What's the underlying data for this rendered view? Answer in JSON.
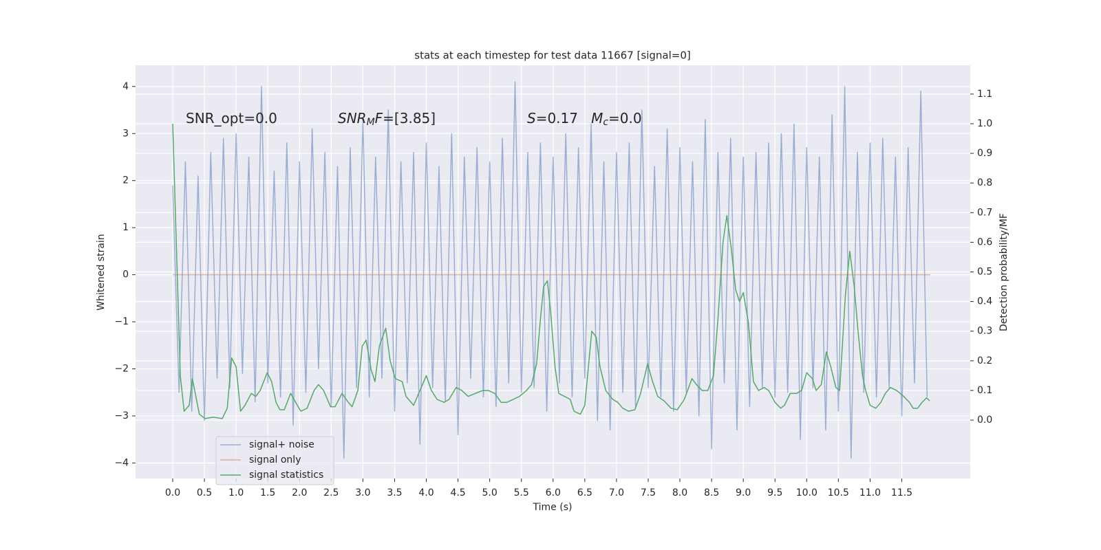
{
  "chart_data": {
    "type": "line",
    "title": "stats at each timestep for test data 11667 [signal=0]",
    "x_label": "Time (s)",
    "y_label": "Whitened strain",
    "y2_label": "Detection probability/MF",
    "annotations": [
      [
        {
          "t": "SNR_opt=0.0"
        }
      ],
      [
        {
          "t": "SNR",
          "italic": true
        },
        {
          "t": "M",
          "italic": true,
          "sub": true
        },
        {
          "t": "F",
          "italic": true
        },
        {
          "t": "=[3.85]"
        }
      ],
      [
        {
          "t": "S",
          "italic": true
        },
        {
          "t": "=0.17   "
        },
        {
          "t": "M",
          "italic": true
        },
        {
          "t": "c",
          "italic": true,
          "sub": true
        },
        {
          "t": "=0.0"
        }
      ]
    ],
    "xlim": [
      -0.586,
      12.58
    ],
    "ylim": [
      -4.33,
      4.45
    ],
    "y2lim": [
      -0.197,
      1.197
    ],
    "xticks": [
      {
        "value": 0,
        "label": "0.0"
      },
      0.5,
      {
        "value": 1,
        "label": "1.0"
      },
      1.5,
      {
        "value": 2,
        "label": "2.0"
      },
      2.5,
      {
        "value": 3,
        "label": "3.0"
      },
      3.5,
      {
        "value": 4,
        "label": "4.0"
      },
      4.5,
      {
        "value": 5,
        "label": "5.0"
      },
      5.5,
      {
        "value": 6,
        "label": "6.0"
      },
      6.5,
      {
        "value": 7,
        "label": "7.0"
      },
      7.5,
      {
        "value": 8,
        "label": "8.0"
      },
      8.5,
      {
        "value": 9,
        "label": "9.0"
      },
      9.5,
      {
        "value": 10,
        "label": "10.0"
      },
      10.5,
      {
        "value": 11,
        "label": "11.0"
      },
      11.5
    ],
    "yticks": [
      {
        "value": -4,
        "label": "−4"
      },
      {
        "value": -3,
        "label": "−3"
      },
      {
        "value": -2,
        "label": "−2"
      },
      {
        "value": -1,
        "label": "−1"
      },
      0,
      1,
      2,
      3,
      4
    ],
    "y2ticks": [
      {
        "value": 0,
        "label": "0.0"
      },
      0.1,
      0.2,
      0.3,
      0.4,
      0.5,
      0.6,
      0.7,
      0.8,
      0.9,
      {
        "value": 1,
        "label": "1.0"
      },
      1.1
    ],
    "grid": true,
    "legend": "lower left",
    "series": [
      {
        "name": "signal+ noise",
        "color": "#4c72b0",
        "opacity": 0.5,
        "x": [
          0,
          0.1,
          0.2,
          0.3,
          0.4,
          0.5,
          0.6,
          0.7,
          0.8,
          0.9,
          1,
          1.1,
          1.2,
          1.3,
          1.4,
          1.5,
          1.6,
          1.7,
          1.8,
          1.9,
          2,
          2.1,
          2.2,
          2.3,
          2.4,
          2.5,
          2.6,
          2.7,
          2.8,
          2.9,
          3,
          3.1,
          3.2,
          3.3,
          3.4,
          3.5,
          3.6,
          3.7,
          3.8,
          3.9,
          4,
          4.1,
          4.2,
          4.3,
          4.4,
          4.5,
          4.6,
          4.7,
          4.8,
          4.9,
          5,
          5.1,
          5.2,
          5.3,
          5.4,
          5.5,
          5.6,
          5.7,
          5.8,
          5.9,
          6,
          6.1,
          6.2,
          6.3,
          6.4,
          6.5,
          6.6,
          6.7,
          6.8,
          6.9,
          7,
          7.1,
          7.2,
          7.3,
          7.4,
          7.5,
          7.6,
          7.7,
          7.8,
          7.9,
          8,
          8.1,
          8.2,
          8.3,
          8.4,
          8.5,
          8.6,
          8.7,
          8.8,
          8.9,
          9,
          9.1,
          9.2,
          9.3,
          9.4,
          9.5,
          9.6,
          9.7,
          9.8,
          9.9,
          10,
          10.1,
          10.2,
          10.3,
          10.4,
          10.5,
          10.6,
          10.7,
          10.8,
          10.9,
          11,
          11.1,
          11.2,
          11.3,
          11.4,
          11.5,
          11.6,
          11.7,
          11.8,
          11.9
        ],
        "values": [
          1.9,
          -2.5,
          2.4,
          -2.9,
          2.1,
          -3.1,
          2.6,
          -2.2,
          2.9,
          -2.4,
          3.0,
          -2.1,
          2.5,
          -2.7,
          4.0,
          -2.3,
          2.2,
          -2.6,
          2.8,
          -3.2,
          2.4,
          -2.5,
          3.1,
          -2.0,
          2.6,
          -2.8,
          2.3,
          -3.9,
          2.7,
          -2.4,
          3.3,
          -2.6,
          2.5,
          -2.2,
          3.5,
          -2.9,
          2.4,
          -2.3,
          2.6,
          -3.6,
          2.8,
          -2.4,
          2.3,
          -2.7,
          3.0,
          -3.4,
          2.5,
          -2.2,
          2.7,
          -2.6,
          2.4,
          -2.8,
          2.9,
          -2.3,
          4.1,
          -2.5,
          2.6,
          -2.4,
          2.8,
          -2.9,
          2.5,
          -2.3,
          3.0,
          -2.6,
          2.7,
          -2.2,
          3.2,
          -3.1,
          2.4,
          -3.3,
          2.6,
          -2.5,
          2.8,
          -2.8,
          3.5,
          -2.4,
          2.3,
          -2.6,
          3.1,
          -2.9,
          2.7,
          -2.5,
          2.4,
          -3.0,
          3.3,
          -3.7,
          2.6,
          -2.3,
          2.9,
          -3.3,
          2.5,
          -2.8,
          2.6,
          -2.4,
          2.8,
          -2.6,
          3.0,
          -2.5,
          3.2,
          -3.5,
          2.7,
          -2.4,
          2.5,
          -3.3,
          3.4,
          -2.9,
          4.0,
          -3.9,
          2.6,
          -2.5,
          2.8,
          -2.6,
          2.9,
          -2.4,
          2.5,
          -3.0,
          2.7,
          -2.3,
          3.9,
          -2.6
        ]
      },
      {
        "name": "signal only",
        "color": "#dd8452",
        "opacity": 0.6,
        "x": [
          0,
          11.95
        ],
        "values": [
          0,
          0
        ]
      },
      {
        "name": "signal statistics",
        "color": "#55a868",
        "axis": "y2",
        "x": [
          0,
          0.12,
          0.18,
          0.26,
          0.31,
          0.42,
          0.51,
          0.64,
          0.78,
          0.86,
          0.93,
          1.0,
          1.07,
          1.14,
          1.24,
          1.31,
          1.38,
          1.49,
          1.56,
          1.63,
          1.69,
          1.76,
          1.86,
          1.94,
          2.02,
          2.12,
          2.23,
          2.3,
          2.38,
          2.49,
          2.56,
          2.67,
          2.77,
          2.83,
          2.92,
          2.99,
          3.05,
          3.13,
          3.19,
          3.26,
          3.36,
          3.43,
          3.51,
          3.62,
          3.68,
          3.8,
          3.9,
          4.0,
          4.08,
          4.17,
          4.28,
          4.36,
          4.47,
          4.56,
          4.66,
          4.77,
          4.89,
          4.98,
          5.08,
          5.18,
          5.27,
          5.37,
          5.47,
          5.58,
          5.66,
          5.74,
          5.8,
          5.85,
          5.91,
          5.96,
          6.03,
          6.09,
          6.18,
          6.27,
          6.33,
          6.43,
          6.5,
          6.57,
          6.61,
          6.68,
          6.74,
          6.83,
          6.94,
          7.02,
          7.1,
          7.19,
          7.29,
          7.38,
          7.49,
          7.57,
          7.65,
          7.75,
          7.86,
          7.96,
          8.07,
          8.19,
          8.26,
          8.35,
          8.44,
          8.53,
          8.6,
          8.68,
          8.74,
          8.81,
          8.88,
          8.94,
          9.0,
          9.08,
          9.16,
          9.24,
          9.33,
          9.4,
          9.5,
          9.59,
          9.65,
          9.74,
          9.84,
          9.92,
          10.0,
          10.09,
          10.15,
          10.23,
          10.31,
          10.38,
          10.46,
          10.52,
          10.61,
          10.68,
          10.75,
          10.81,
          10.88,
          10.93,
          11.0,
          11.09,
          11.17,
          11.24,
          11.32,
          11.42,
          11.53,
          11.62,
          11.68,
          11.75,
          11.82,
          11.89,
          11.94
        ],
        "values": [
          1.0,
          0.15,
          0.03,
          0.05,
          0.14,
          0.02,
          0.005,
          0.01,
          0.005,
          0.04,
          0.21,
          0.18,
          0.03,
          0.05,
          0.09,
          0.08,
          0.1,
          0.16,
          0.13,
          0.06,
          0.035,
          0.035,
          0.09,
          0.06,
          0.03,
          0.04,
          0.1,
          0.12,
          0.1,
          0.045,
          0.045,
          0.09,
          0.06,
          0.045,
          0.1,
          0.25,
          0.27,
          0.17,
          0.13,
          0.25,
          0.31,
          0.2,
          0.14,
          0.13,
          0.08,
          0.05,
          0.1,
          0.15,
          0.1,
          0.07,
          0.06,
          0.07,
          0.11,
          0.1,
          0.08,
          0.09,
          0.1,
          0.1,
          0.09,
          0.06,
          0.06,
          0.07,
          0.08,
          0.1,
          0.12,
          0.19,
          0.34,
          0.45,
          0.47,
          0.37,
          0.18,
          0.09,
          0.08,
          0.07,
          0.03,
          0.02,
          0.05,
          0.21,
          0.3,
          0.28,
          0.18,
          0.1,
          0.07,
          0.06,
          0.04,
          0.03,
          0.035,
          0.09,
          0.19,
          0.13,
          0.08,
          0.065,
          0.04,
          0.035,
          0.07,
          0.14,
          0.12,
          0.1,
          0.1,
          0.15,
          0.34,
          0.6,
          0.69,
          0.58,
          0.44,
          0.4,
          0.43,
          0.33,
          0.13,
          0.1,
          0.11,
          0.1,
          0.06,
          0.04,
          0.05,
          0.09,
          0.09,
          0.1,
          0.16,
          0.14,
          0.1,
          0.12,
          0.23,
          0.18,
          0.11,
          0.1,
          0.42,
          0.57,
          0.45,
          0.3,
          0.15,
          0.1,
          0.05,
          0.04,
          0.06,
          0.09,
          0.11,
          0.1,
          0.08,
          0.06,
          0.04,
          0.04,
          0.06,
          0.075,
          0.065
        ]
      }
    ]
  }
}
